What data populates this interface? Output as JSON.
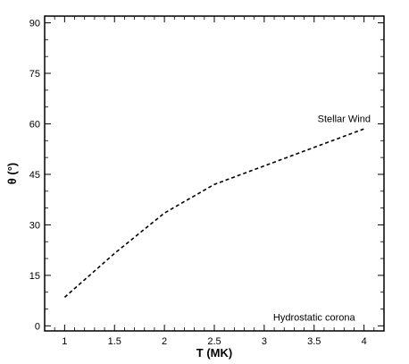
{
  "chart_data": {
    "type": "line",
    "title": "",
    "xlabel": "T (MK)",
    "ylabel": "θ (°)",
    "xlim": [
      0.8,
      4.2
    ],
    "ylim": [
      -1.5,
      92
    ],
    "x_ticks": [
      1,
      1.5,
      2,
      2.5,
      3,
      3.5,
      4
    ],
    "x_tick_labels": [
      "1",
      "1.5",
      "2",
      "2.5",
      "3",
      "3.5",
      "4"
    ],
    "y_ticks": [
      0,
      15,
      30,
      45,
      60,
      75,
      90
    ],
    "y_tick_labels": [
      "0",
      "15",
      "30",
      "45",
      "60",
      "75",
      "90"
    ],
    "grid": false,
    "series": [
      {
        "style": "dashed",
        "color": "#000000",
        "x": [
          1.0,
          1.5,
          2.0,
          2.5,
          3.0,
          3.5,
          4.0
        ],
        "y": [
          8.5,
          21.5,
          33.5,
          42.0,
          47.5,
          53.0,
          58.5
        ]
      }
    ],
    "annotations": [
      {
        "text": "Stellar Wind",
        "x": 3.8,
        "y": 60.5
      },
      {
        "text": "Hydrostatic corona",
        "x": 3.5,
        "y": 1.5
      }
    ]
  }
}
